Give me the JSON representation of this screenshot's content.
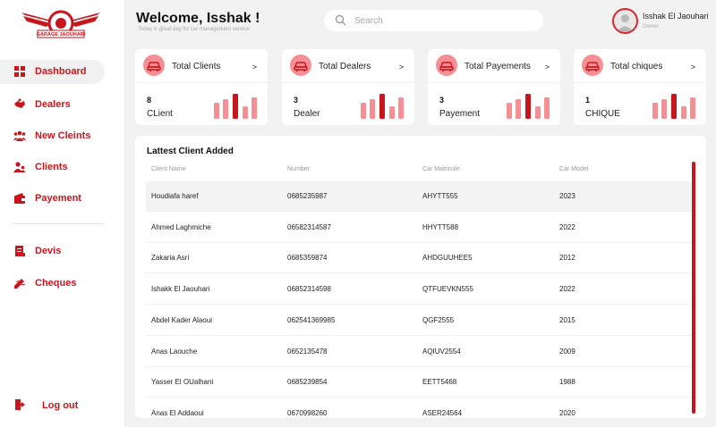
{
  "brand": {
    "logo_text": "GARAGE JAOUHARI"
  },
  "sidebar": {
    "items": [
      {
        "label": "Dashboard",
        "icon": "grid-icon",
        "active": true
      },
      {
        "label": "Dealers",
        "icon": "handshake-icon",
        "active": false
      },
      {
        "label": "New Cleints",
        "icon": "group-icon",
        "active": false
      },
      {
        "label": "Clients",
        "icon": "users-icon",
        "active": false
      },
      {
        "label": "Payement",
        "icon": "wallet-icon",
        "active": false
      }
    ],
    "items2": [
      {
        "label": "Devis",
        "icon": "document-icon"
      },
      {
        "label": "Cheques",
        "icon": "cheque-icon"
      }
    ],
    "logout_label": "Log out"
  },
  "header": {
    "welcome": "Welcome, Isshak !",
    "tagline": "Today is great day for car management service",
    "search_placeholder": "Search",
    "user_name": "Isshak El Jaouhari",
    "user_role": "Owner"
  },
  "cards": [
    {
      "title": "Total Clients",
      "value": "8",
      "unit": "CLient"
    },
    {
      "title": "Total Dealers",
      "value": "3",
      "unit": "Dealer"
    },
    {
      "title": "Total Payements",
      "value": "3",
      "unit": "Payement"
    },
    {
      "title": "Total chiques",
      "value": "1",
      "unit": "CHIQUE"
    }
  ],
  "colors": {
    "accent": "#c8161d",
    "accent_light": "#f58f94"
  },
  "table": {
    "title": "Lattest Client Added",
    "columns": [
      "Client Name",
      "Number",
      "Car Matricule",
      "Car Model"
    ],
    "rows": [
      [
        "Houdiafa haref",
        "0685235987",
        "AHYTT555",
        "2023"
      ],
      [
        "Ahmed Laghmiche",
        "06582314587",
        "HHYTT588",
        "2022"
      ],
      [
        "Zakaria Asri",
        "0685359874",
        "AHDGUUHEE5",
        "2012"
      ],
      [
        "Ishakk El Jaouhari",
        "06852314598",
        "QTFUEVKN555",
        "2022"
      ],
      [
        "Abdel Kader Alaoui",
        "062541369985",
        "QGF2555",
        "2015"
      ],
      [
        "Anas Laouche",
        "0652135478",
        "AQIUV2554",
        "2009"
      ],
      [
        "Yasser El OUalhani",
        "0685239854",
        "EETT5468",
        "1988"
      ],
      [
        "Anas El Addaoui",
        "0670998260",
        "ASER24564",
        "2020"
      ]
    ]
  }
}
